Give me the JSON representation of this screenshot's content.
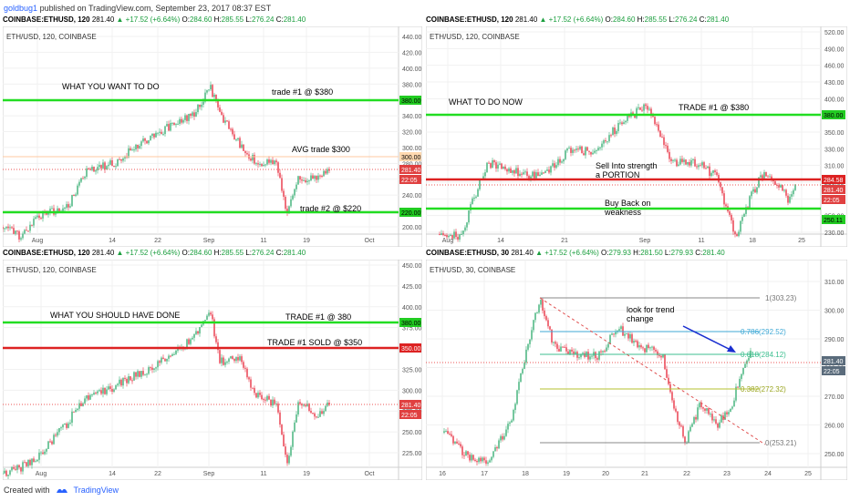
{
  "publication": {
    "user": "goldbug1",
    "rest": "published on TradingView.com, September 23, 2017 08:37 EST"
  },
  "footer": {
    "created": "Created with",
    "brand": "TradingView"
  },
  "colors": {
    "green_line": "#22dd22",
    "red_line": "#dd2222",
    "candle_up": "#53b987",
    "candle_down": "#eb4d5c",
    "grid": "#eeeeee",
    "axis_text": "#555555"
  },
  "panes": [
    {
      "header": {
        "sym": "COINBASE:ETHUSD, 120",
        "last": "281.40",
        "change": "+17.52 (+6.64%)",
        "o": "284.60",
        "h": "285.55",
        "l": "276.24",
        "c": "281.40"
      },
      "title": "ETH/USD, 120, COINBASE",
      "y_ticks": [
        "440.00",
        "420.00",
        "400.00",
        "380.00",
        "360.00",
        "340.00",
        "320.00",
        "300.00",
        "280.00",
        "260.00",
        "240.00",
        "220.00",
        "200.00"
      ],
      "x_ticks": [
        "Aug",
        "14",
        "22",
        "Sep",
        "11",
        "19",
        "Oct"
      ],
      "annotations": [
        "WHAT YOU WANT TO DO",
        "trade #1 @ $380",
        "AVG trade $300",
        "trade #2 @ $220"
      ],
      "price_tags": [
        "380.00",
        "300.00",
        "281.40",
        "22:05",
        "220.00"
      ]
    },
    {
      "header": {
        "sym": "COINBASE:ETHUSD, 120",
        "last": "281.40",
        "change": "+17.52 (+6.64%)",
        "o": "284.60",
        "h": "285.55",
        "l": "276.24",
        "c": "281.40"
      },
      "title": "ETH/USD, 120, COINBASE",
      "y_ticks": [
        "520.00",
        "490.00",
        "460.00",
        "430.00",
        "400.00",
        "380.00",
        "350.00",
        "330.00",
        "310.00",
        "290.00",
        "270.00",
        "250.00",
        "230.00"
      ],
      "x_ticks": [
        "Aug",
        "14",
        "21",
        "Sep",
        "11",
        "18",
        "25"
      ],
      "annotations": [
        "WHAT TO DO NOW",
        "TRADE #1 @ $380",
        "Sell Into strength",
        "a PORTION",
        "Buy Back on",
        "weakness"
      ],
      "price_tags": [
        "380.00",
        "284.58",
        "281.40",
        "22:05",
        "250.11"
      ]
    },
    {
      "header": {
        "sym": "COINBASE:ETHUSD, 120",
        "last": "281.40",
        "change": "+17.52 (+6.64%)",
        "o": "284.60",
        "h": "285.55",
        "l": "276.24",
        "c": "281.40"
      },
      "title": "ETH/USD, 120, COINBASE",
      "y_ticks": [
        "450.00",
        "425.00",
        "400.00",
        "375.00",
        "350.00",
        "325.00",
        "300.00",
        "275.00",
        "250.00",
        "225.00"
      ],
      "x_ticks": [
        "Aug",
        "14",
        "22",
        "Sep",
        "11",
        "19",
        "Oct"
      ],
      "annotations": [
        "WHAT YOU SHOULD HAVE DONE",
        "TRADE #1 @ 380",
        "TRADE #1 SOLD @ $350"
      ],
      "price_tags": [
        "380.00",
        "350.00",
        "281.40",
        "22:05"
      ]
    },
    {
      "header": {
        "sym": "COINBASE:ETHUSD, 30",
        "last": "281.40",
        "change": "+17.52 (+6.64%)",
        "o": "279.93",
        "h": "281.50",
        "l": "279.93",
        "c": "281.40"
      },
      "title": "ETH/USD, 30, COINBASE",
      "y_ticks": [
        "310.00",
        "300.00",
        "290.00",
        "280.00",
        "270.00",
        "260.00",
        "250.00"
      ],
      "x_ticks": [
        "16",
        "17",
        "18",
        "19",
        "20",
        "21",
        "22",
        "23",
        "24",
        "25"
      ],
      "annotations": [
        "look for trend",
        "change"
      ],
      "fib_levels": [
        "1(303.23)",
        "0.786(292.52)",
        "0.618(284.12)",
        "0.382(272.32)",
        "0(253.21)"
      ],
      "price_tags": [
        "281.40",
        "22:05"
      ]
    }
  ]
}
